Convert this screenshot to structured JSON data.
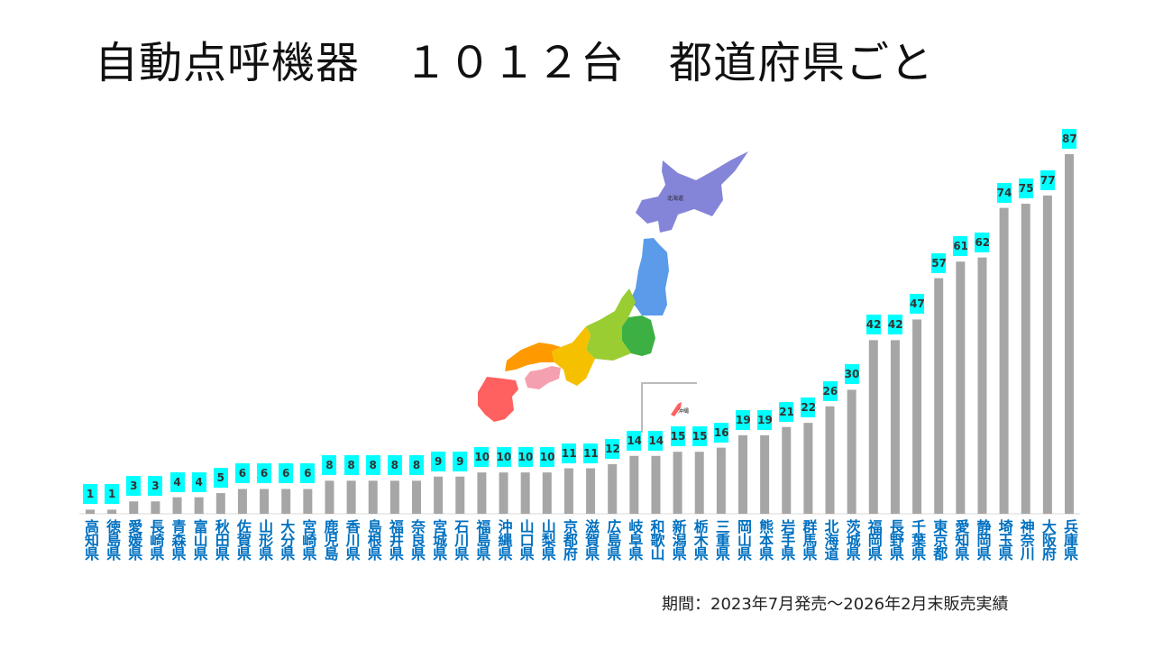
{
  "title": "自動点呼機器　１０１２台　都道府県ごと",
  "note": "期間：2023年7月発売～2026年2月末販売実績",
  "colors": {
    "bar": "#A6A6A6",
    "label_bg": "#00FFFF",
    "category_text": "#0070C0"
  },
  "map": {
    "labels": [
      "北海道",
      "沖縄"
    ],
    "region_colors": {
      "hokkaido": "#8484D8",
      "tohoku": "#5B9BEA",
      "kanto": "#3CB043",
      "chubu": "#9ACD32",
      "kinki": "#F5C000",
      "chugoku": "#FF9900",
      "shikoku": "#F5A0B0",
      "kyushu": "#FF6060"
    }
  },
  "chart_data": {
    "type": "bar",
    "title": "自動点呼機器　１０１２台　都道府県ごと",
    "categories": [
      "高知県",
      "徳島県",
      "愛媛県",
      "長崎県",
      "青森県",
      "富山県",
      "秋田県",
      "佐賀県",
      "山形県",
      "大分県",
      "宮崎県",
      "鹿児島",
      "香川県",
      "島根県",
      "福井県",
      "奈良県",
      "宮城県",
      "石川県",
      "福島県",
      "沖縄県",
      "山口県",
      "山梨県",
      "京都府",
      "滋賀県",
      "広島県",
      "岐阜県",
      "和歌山",
      "新潟県",
      "栃木県",
      "三重県",
      "岡山県",
      "熊本県",
      "岩手県",
      "群馬県",
      "北海道",
      "茨城県",
      "福岡県",
      "長野県",
      "千葉県",
      "東京都",
      "愛知県",
      "静岡県",
      "埼玉県",
      "神奈川",
      "大阪府",
      "兵庫県"
    ],
    "values": [
      1,
      1,
      3,
      3,
      4,
      4,
      5,
      6,
      6,
      6,
      6,
      8,
      8,
      8,
      8,
      8,
      9,
      9,
      10,
      10,
      10,
      10,
      11,
      11,
      12,
      14,
      14,
      15,
      15,
      16,
      19,
      19,
      21,
      22,
      26,
      30,
      42,
      42,
      47,
      57,
      61,
      62,
      74,
      75,
      77,
      87
    ],
    "ylim": [
      0,
      87
    ],
    "grid": false,
    "data_labels": true
  }
}
